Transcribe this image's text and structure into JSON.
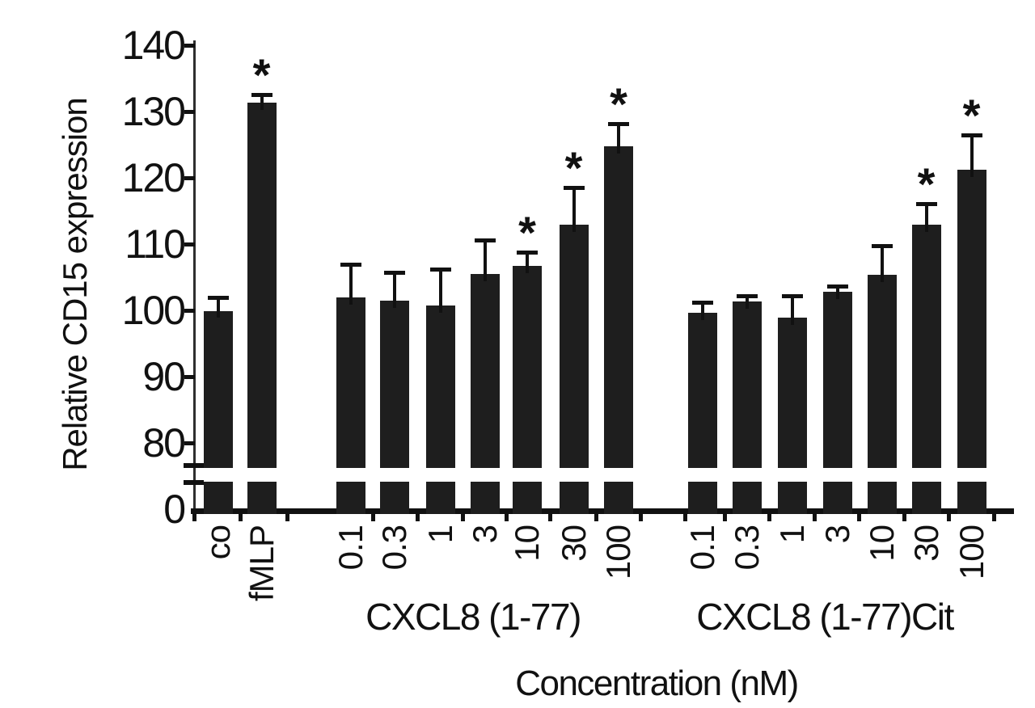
{
  "figure": {
    "background": "#ffffff",
    "ink_color": "#111111",
    "bar_color": "#1e1e1e"
  },
  "chart_data": {
    "type": "bar",
    "title": "",
    "ylabel": "Relative CD15 expression",
    "xlabel": "Concentration (nM)",
    "y_axis": {
      "tick_values": [
        140,
        130,
        120,
        110,
        100,
        90,
        80
      ],
      "origin_label": "0",
      "has_axis_break": true,
      "break_hides_range": [
        0,
        76
      ],
      "ylim_top": 140
    },
    "significance_marker": "*",
    "error_bars": "upper SEM whiskers with caps",
    "groups": [
      {
        "label": "",
        "bars": [
          {
            "x_label": "co",
            "value": 100.0,
            "error": 2.0,
            "significant": false
          },
          {
            "x_label": "fMLP",
            "value": 131.4,
            "error": 1.2,
            "significant": true
          }
        ]
      },
      {
        "label": "CXCL8 (1-77)",
        "bars": [
          {
            "x_label": "0.1",
            "value": 102.0,
            "error": 5.0,
            "significant": false
          },
          {
            "x_label": "0.3",
            "value": 101.5,
            "error": 4.3,
            "significant": false
          },
          {
            "x_label": "1",
            "value": 100.8,
            "error": 5.5,
            "significant": false
          },
          {
            "x_label": "3",
            "value": 105.5,
            "error": 5.2,
            "significant": false
          },
          {
            "x_label": "10",
            "value": 106.8,
            "error": 2.1,
            "significant": true
          },
          {
            "x_label": "30",
            "value": 113.0,
            "error": 5.6,
            "significant": true
          },
          {
            "x_label": "100",
            "value": 124.8,
            "error": 3.4,
            "significant": true
          }
        ]
      },
      {
        "label": "CXCL8 (1-77)Cit",
        "bars": [
          {
            "x_label": "0.1",
            "value": 99.7,
            "error": 1.6,
            "significant": false
          },
          {
            "x_label": "0.3",
            "value": 101.4,
            "error": 0.9,
            "significant": false
          },
          {
            "x_label": "1",
            "value": 99.0,
            "error": 3.2,
            "significant": false
          },
          {
            "x_label": "3",
            "value": 102.9,
            "error": 0.8,
            "significant": false
          },
          {
            "x_label": "10",
            "value": 105.4,
            "error": 4.4,
            "significant": false
          },
          {
            "x_label": "30",
            "value": 113.0,
            "error": 3.1,
            "significant": true
          },
          {
            "x_label": "100",
            "value": 121.3,
            "error": 5.2,
            "significant": true
          }
        ]
      }
    ]
  }
}
